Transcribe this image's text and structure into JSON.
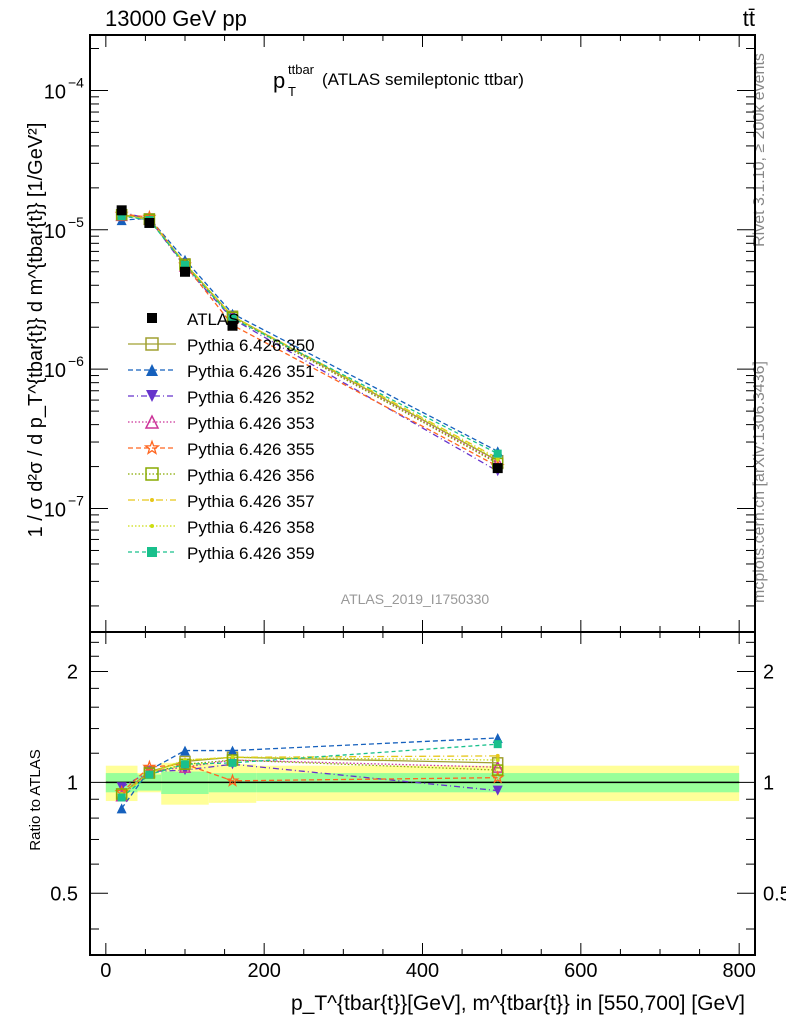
{
  "header": {
    "left": "13000 GeV pp",
    "right": "tt̄"
  },
  "side": {
    "rivet": "Rivet 3.1.10, ≥ 200k events",
    "mcplots": "mcplots.cern.ch [arXiv:1306.3436]"
  },
  "watermark": "ATLAS_2019_I1750330",
  "chart_data": {
    "type": "line",
    "title_main": "p",
    "title_sup": "ttbar",
    "title_sub": "T",
    "title_rest": " (ATLAS semileptonic ttbar)",
    "ylabel": "1 / σ d²σ / d p_T^{tbar{t}} d m^{tbar{t}} [1/GeV²]",
    "xlabel": "p_T^{tbar{t}}[GeV], m^{tbar{t}} in [550,700] [GeV]",
    "ratio_ylabel": "Ratio to ATLAS",
    "xlim": [
      -20,
      820
    ],
    "ylim": [
      1.3e-08,
      0.00025
    ],
    "yscale": "log",
    "ratio_ylim": [
      0.34,
      2.56
    ],
    "x_ticks": [
      {
        "v": 0,
        "label": "0"
      },
      {
        "v": 200,
        "label": "200"
      },
      {
        "v": 400,
        "label": "400"
      },
      {
        "v": 600,
        "label": "600"
      },
      {
        "v": 800,
        "label": "800"
      }
    ],
    "y_ticks": [
      {
        "v": 0.0001,
        "base": "10",
        "exp": "−4"
      },
      {
        "v": 1e-05,
        "base": "10",
        "exp": "−5"
      },
      {
        "v": 1e-06,
        "base": "10",
        "exp": "−6"
      },
      {
        "v": 1e-07,
        "base": "10",
        "exp": "−7"
      }
    ],
    "ratio_ticks": [
      {
        "v": 2,
        "label": "2"
      },
      {
        "v": 1,
        "label": "1"
      },
      {
        "v": 0.5,
        "label": "0.5"
      }
    ],
    "x": [
      20,
      55,
      100,
      160,
      495
    ],
    "bin_edges": [
      0,
      40,
      70,
      130,
      190,
      800
    ],
    "data": {
      "name": "ATLAS",
      "values": [
        1.38e-05,
        1.12e-05,
        5e-06,
        2.05e-06,
        1.95e-07
      ]
    },
    "band_yellow": [
      0.11,
      0.06,
      0.13,
      0.12,
      0.11
    ],
    "band_green": [
      0.06,
      0.05,
      0.07,
      0.06,
      0.06
    ],
    "series": [
      {
        "name": "Pythia 6.426 350",
        "color": "#a0a030",
        "dash": "",
        "marker": "osquare",
        "ratio": [
          0.93,
          1.07,
          1.14,
          1.17,
          1.13
        ]
      },
      {
        "name": "Pythia 6.426 351",
        "color": "#1560bd",
        "dash": "5,3",
        "marker": "utri",
        "ratio": [
          0.85,
          1.08,
          1.22,
          1.22,
          1.32
        ]
      },
      {
        "name": "Pythia 6.426 352",
        "color": "#6633cc",
        "dash": "6,3,1,3",
        "marker": "dtri",
        "ratio": [
          0.97,
          1.07,
          1.08,
          1.12,
          0.95
        ]
      },
      {
        "name": "Pythia 6.426 353",
        "color": "#cc3399",
        "dash": "1.5,2",
        "marker": "outri",
        "ratio": [
          0.92,
          1.07,
          1.1,
          1.15,
          1.1
        ]
      },
      {
        "name": "Pythia 6.426 355",
        "color": "#ff6620",
        "dash": "5,3",
        "marker": "star",
        "ratio": [
          0.94,
          1.1,
          1.12,
          1.01,
          1.03
        ]
      },
      {
        "name": "Pythia 6.426 356",
        "color": "#88aa00",
        "dash": "1.5,2",
        "marker": "osquare",
        "ratio": [
          0.93,
          1.06,
          1.12,
          1.15,
          1.08
        ]
      },
      {
        "name": "Pythia 6.426 357",
        "color": "#e6c619",
        "dash": "7,3,1,3",
        "marker": "dot",
        "ratio": [
          0.92,
          1.06,
          1.15,
          1.17,
          1.18
        ]
      },
      {
        "name": "Pythia 6.426 358",
        "color": "#ccdd11",
        "dash": "1.5,2",
        "marker": "dot",
        "ratio": [
          0.93,
          1.06,
          1.15,
          1.17,
          1.15
        ]
      },
      {
        "name": "Pythia 6.426 359",
        "color": "#19c08c",
        "dash": "4,3",
        "marker": "fsquare",
        "ratio": [
          0.91,
          1.05,
          1.12,
          1.13,
          1.27
        ]
      }
    ]
  }
}
